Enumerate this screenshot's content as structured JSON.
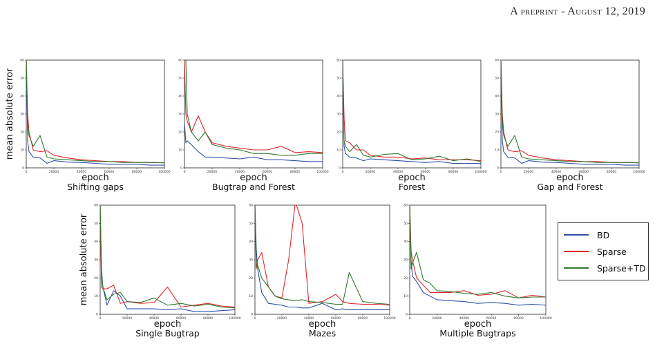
{
  "header": "A preprint - August 12, 2019",
  "colors": {
    "BD": "#2a4fa8",
    "Sparse": "#e0242a",
    "Sparse+TD": "#2e7a2e"
  },
  "legend": [
    {
      "name": "BD",
      "color": "#2a4fa8"
    },
    {
      "name": "Sparse",
      "color": "#e0242a"
    },
    {
      "name": "Sparse+TD",
      "color": "#2e7a2e"
    }
  ],
  "axis_label_y": "mean absolute error",
  "axis_label_x": "epoch",
  "chart_data": [
    {
      "type": "line",
      "title": "Shifting gaps",
      "xlabel": "epoch",
      "ylabel": "mean absolute error",
      "xlim": [
        0,
        100000
      ],
      "ylim": [
        0,
        60
      ],
      "xticks": [
        0,
        20000,
        40000,
        60000,
        80000,
        100000
      ],
      "yticks": [
        0,
        10,
        20,
        30,
        40,
        50,
        60
      ],
      "x": [
        0,
        1000,
        2000,
        5000,
        10000,
        15000,
        20000,
        30000,
        40000,
        50000,
        60000,
        70000,
        80000,
        90000,
        100000
      ],
      "series": [
        {
          "name": "BD",
          "values": [
            60,
            15,
            9,
            6,
            5.5,
            2.5,
            4,
            3.2,
            3,
            2.5,
            2,
            2,
            2,
            1.5,
            1.5
          ]
        },
        {
          "name": "Sparse",
          "values": [
            60,
            30,
            20,
            10,
            9,
            9.5,
            7,
            5.5,
            4.5,
            4,
            3.5,
            3.5,
            3,
            3,
            2.8
          ]
        },
        {
          "name": "Sparse+TD",
          "values": [
            60,
            25,
            18,
            12,
            18,
            6,
            5,
            4.5,
            4,
            3.5,
            3.5,
            3,
            3,
            3,
            2.8
          ]
        }
      ]
    },
    {
      "type": "line",
      "title": "Bugtrap and Forest",
      "xlabel": "epoch",
      "ylabel": "",
      "xlim": [
        0,
        100000
      ],
      "ylim": [
        0,
        60
      ],
      "xticks": [
        0,
        20000,
        40000,
        60000,
        80000,
        100000
      ],
      "yticks": [
        0,
        10,
        20,
        30,
        40,
        50,
        60
      ],
      "x": [
        0,
        1000,
        2000,
        5000,
        10000,
        15000,
        20000,
        30000,
        40000,
        50000,
        60000,
        70000,
        80000,
        90000,
        100000
      ],
      "series": [
        {
          "name": "BD",
          "values": [
            25,
            14,
            15,
            13,
            9,
            6,
            6,
            5.5,
            5,
            6,
            4.5,
            4.5,
            4,
            3.5,
            3.5
          ]
        },
        {
          "name": "Sparse",
          "values": [
            60,
            30,
            26,
            20,
            29,
            20,
            14,
            12,
            11,
            10,
            10,
            12,
            8.5,
            9,
            8.5
          ]
        },
        {
          "name": "Sparse+TD",
          "values": [
            60,
            60,
            30,
            20,
            15,
            20,
            13,
            11,
            10,
            8,
            8,
            7,
            7,
            8,
            8
          ]
        }
      ]
    },
    {
      "type": "line",
      "title": "Forest",
      "xlabel": "epoch",
      "ylabel": "",
      "xlim": [
        0,
        100000
      ],
      "ylim": [
        0,
        60
      ],
      "xticks": [
        0,
        20000,
        40000,
        60000,
        80000,
        100000
      ],
      "yticks": [
        0,
        10,
        20,
        30,
        40,
        50,
        60
      ],
      "x": [
        0,
        1000,
        2000,
        5000,
        10000,
        15000,
        20000,
        30000,
        40000,
        50000,
        60000,
        70000,
        80000,
        90000,
        100000
      ],
      "series": [
        {
          "name": "BD",
          "values": [
            60,
            12,
            8,
            6,
            5.5,
            4,
            5,
            4.5,
            4,
            3.5,
            3,
            3.5,
            2.5,
            2.5,
            2.5
          ]
        },
        {
          "name": "Sparse",
          "values": [
            60,
            28,
            15,
            14,
            10,
            10,
            7,
            6,
            6,
            5,
            5.5,
            4.5,
            4.5,
            4.5,
            4
          ]
        },
        {
          "name": "Sparse+TD",
          "values": [
            60,
            15,
            12,
            9,
            13,
            7,
            6,
            7.5,
            8,
            4.5,
            5,
            6.5,
            4,
            5,
            3.5
          ]
        }
      ]
    },
    {
      "type": "line",
      "title": "Gap and Forest",
      "xlabel": "epoch",
      "ylabel": "",
      "xlim": [
        0,
        100000
      ],
      "ylim": [
        0,
        60
      ],
      "xticks": [
        0,
        20000,
        40000,
        60000,
        80000,
        100000
      ],
      "yticks": [
        0,
        10,
        20,
        30,
        40,
        50,
        60
      ],
      "x": [
        0,
        1000,
        2000,
        5000,
        10000,
        15000,
        20000,
        30000,
        40000,
        50000,
        60000,
        70000,
        80000,
        90000,
        100000
      ],
      "series": [
        {
          "name": "BD",
          "values": [
            60,
            15,
            9,
            6,
            5.5,
            2.5,
            4,
            3.2,
            3,
            2.5,
            2,
            2,
            2,
            1.5,
            1.5
          ]
        },
        {
          "name": "Sparse",
          "values": [
            60,
            30,
            20,
            10,
            9,
            9.5,
            7,
            5.5,
            4.5,
            4,
            3.5,
            3.5,
            3,
            3,
            2.8
          ]
        },
        {
          "name": "Sparse+TD",
          "values": [
            60,
            25,
            18,
            12,
            18,
            6,
            5,
            4.5,
            4,
            3.5,
            3.5,
            3,
            3,
            3,
            2.8
          ]
        }
      ]
    },
    {
      "type": "line",
      "title": "Single Bugtrap",
      "xlabel": "epoch",
      "ylabel": "mean absolute error",
      "xlim": [
        0,
        100000
      ],
      "ylim": [
        0,
        60
      ],
      "xticks": [
        0,
        20000,
        40000,
        60000,
        80000,
        100000
      ],
      "yticks": [
        0,
        10,
        20,
        30,
        40,
        50,
        60
      ],
      "x": [
        0,
        1000,
        2000,
        5000,
        10000,
        15000,
        20000,
        30000,
        40000,
        50000,
        60000,
        70000,
        80000,
        90000,
        100000
      ],
      "series": [
        {
          "name": "BD",
          "values": [
            60,
            25,
            15,
            5,
            13,
            10,
            3,
            3,
            3,
            2.5,
            3,
            1.5,
            1.5,
            2,
            2.5
          ]
        },
        {
          "name": "Sparse",
          "values": [
            60,
            15,
            14,
            14,
            16,
            6,
            7,
            6,
            6.5,
            15,
            4,
            5,
            6,
            4.5,
            4
          ]
        },
        {
          "name": "Sparse+TD",
          "values": [
            60,
            23,
            15,
            8,
            11,
            12,
            7,
            6.5,
            9,
            5,
            6,
            4.5,
            5.5,
            4,
            3.5
          ]
        }
      ]
    },
    {
      "type": "line",
      "title": "Mazes",
      "xlabel": "epoch",
      "ylabel": "",
      "xlim": [
        0,
        100000
      ],
      "ylim": [
        0,
        60
      ],
      "xticks": [
        0,
        20000,
        40000,
        60000,
        80000,
        100000
      ],
      "yticks": [
        0,
        10,
        20,
        30,
        40,
        50,
        60
      ],
      "x": [
        0,
        1000,
        2000,
        5000,
        10000,
        15000,
        20000,
        25000,
        30000,
        35000,
        40000,
        50000,
        60000,
        65000,
        70000,
        80000,
        90000,
        100000
      ],
      "series": [
        {
          "name": "BD",
          "values": [
            60,
            36,
            25,
            12,
            6,
            5.5,
            5,
            4,
            4,
            3.5,
            3.5,
            6,
            2.5,
            3,
            2.5,
            2.5,
            2.5,
            2.5
          ]
        },
        {
          "name": "Sparse",
          "values": [
            60,
            25,
            30,
            34,
            15,
            10,
            9,
            30,
            62,
            50,
            6,
            7,
            11,
            7,
            6,
            5.5,
            5.5,
            5
          ]
        },
        {
          "name": "Sparse+TD",
          "values": [
            60,
            26,
            27,
            20,
            15,
            10,
            8.5,
            8,
            7.5,
            8,
            7,
            6.5,
            5.5,
            5.5,
            23,
            7,
            6,
            5.5
          ]
        }
      ]
    },
    {
      "type": "line",
      "title": "Multiple Bugtraps",
      "xlabel": "epoch",
      "ylabel": "",
      "xlim": [
        0,
        100000
      ],
      "ylim": [
        0,
        60
      ],
      "xticks": [
        0,
        20000,
        40000,
        60000,
        80000,
        100000
      ],
      "yticks": [
        0,
        10,
        20,
        30,
        40,
        50,
        60
      ],
      "x": [
        0,
        1000,
        2000,
        5000,
        10000,
        15000,
        20000,
        30000,
        40000,
        50000,
        60000,
        70000,
        80000,
        90000,
        100000
      ],
      "series": [
        {
          "name": "BD",
          "values": [
            60,
            30,
            21,
            18,
            12,
            10,
            8,
            7.5,
            7,
            6,
            6.5,
            6,
            5,
            5.5,
            5
          ]
        },
        {
          "name": "Sparse",
          "values": [
            60,
            35,
            30,
            20,
            16,
            12,
            12,
            12,
            13,
            10.5,
            11,
            13,
            9,
            10.5,
            9.5
          ]
        },
        {
          "name": "Sparse+TD",
          "values": [
            60,
            25,
            28,
            34,
            19,
            17,
            13,
            12.5,
            11.5,
            11,
            12,
            10,
            9,
            9.5,
            9.5
          ]
        }
      ]
    }
  ]
}
